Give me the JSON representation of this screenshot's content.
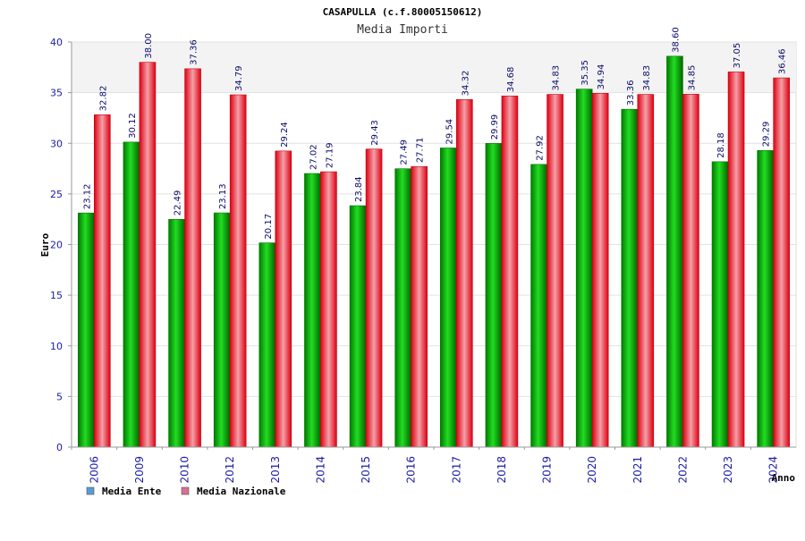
{
  "chart_data": {
    "type": "bar",
    "title": "CASAPULLA (c.f.80005150612)",
    "subtitle": "Media Importi",
    "xlabel": "Anno",
    "ylabel": "Euro",
    "ylim": [
      0,
      40
    ],
    "yticks": [
      0,
      5,
      10,
      15,
      20,
      25,
      30,
      35,
      40
    ],
    "grid": true,
    "legend_position": "bottom-left",
    "categories": [
      "2006",
      "2009",
      "2010",
      "2012",
      "2013",
      "2014",
      "2015",
      "2016",
      "2017",
      "2018",
      "2019",
      "2020",
      "2021",
      "2022",
      "2023",
      "2024"
    ],
    "series": [
      {
        "name": "Media Ente",
        "color": "#00bb00",
        "legend_color": "#5b9bd5",
        "values": [
          23.12,
          30.12,
          22.49,
          23.13,
          20.17,
          27.02,
          23.84,
          27.49,
          29.54,
          29.99,
          27.92,
          35.35,
          33.36,
          38.6,
          28.18,
          29.29
        ],
        "labels": [
          "23.12",
          "30.12",
          "22.49",
          "23.13",
          "20.17",
          "27.02",
          "23.84",
          "27.49",
          "29.54",
          "29.99",
          "27.92",
          "35.35",
          "33.36",
          "38.60",
          "28.18",
          "29.29"
        ]
      },
      {
        "name": "Media Nazionale",
        "color": "#ee1122",
        "legend_color": "#d87093",
        "values": [
          32.82,
          38.0,
          37.36,
          34.79,
          29.24,
          27.19,
          29.43,
          27.71,
          34.32,
          34.68,
          34.83,
          34.94,
          34.83,
          34.85,
          37.05,
          36.46
        ],
        "labels": [
          "32.82",
          "38.00",
          "37.36",
          "34.79",
          "29.24",
          "27.19",
          "29.43",
          "27.71",
          "34.32",
          "34.68",
          "34.83",
          "34.94",
          "34.83",
          "34.85",
          "37.05",
          "36.46"
        ]
      }
    ]
  }
}
